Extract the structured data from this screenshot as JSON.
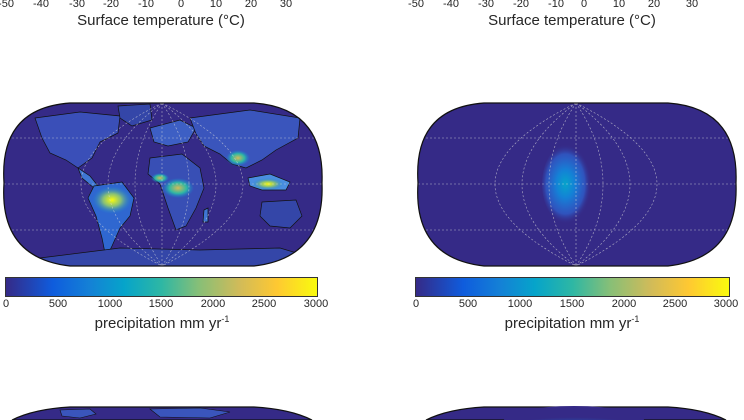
{
  "top_row": {
    "left": {
      "ticks": [
        "-50",
        "-40",
        "-30",
        "-20",
        "-10",
        "0",
        "10",
        "20",
        "30"
      ],
      "title": "Surface temperature (°C)"
    },
    "right": {
      "ticks": [
        "-50",
        "-40",
        "-30",
        "-20",
        "-10",
        "0",
        "10",
        "20",
        "30"
      ],
      "title": "Surface temperature (°C)"
    }
  },
  "middle_row": {
    "left": {
      "map_type": "observed precipitation, Earth continents",
      "colorbar": {
        "ticks": [
          "0",
          "500",
          "1000",
          "1500",
          "2000",
          "2500",
          "3000"
        ],
        "title_main": "precipitation  mm  yr",
        "title_sup": "-1",
        "range": [
          0,
          3000
        ],
        "colormap": "parula"
      }
    },
    "right": {
      "map_type": "simulated precipitation, idealized aquaplanet-like continent",
      "colorbar": {
        "ticks": [
          "0",
          "500",
          "1000",
          "1500",
          "2000",
          "2500",
          "3000"
        ],
        "title_main": "precipitation  mm  yr",
        "title_sup": "-1",
        "range": [
          0,
          3000
        ],
        "colormap": "parula"
      }
    }
  },
  "colors": {
    "background_low": "#352a87",
    "mid": "#1481d6",
    "high": "#f9fb0e",
    "grid": "#dddddd"
  }
}
